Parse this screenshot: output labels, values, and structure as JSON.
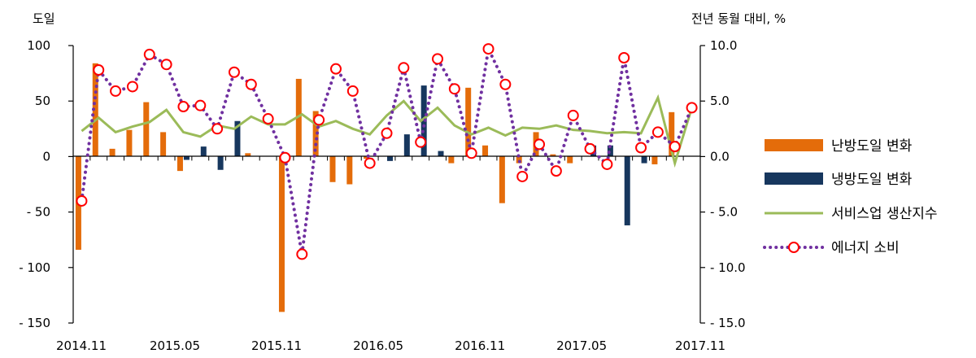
{
  "chart_data": {
    "type": "bar",
    "left_axis_title": "도일",
    "right_axis_title": "전년 동월 대비, %",
    "left_ylim": [
      -150,
      100
    ],
    "left_ticks": [
      "100",
      "50",
      "0",
      "- 50",
      "- 100",
      "- 150"
    ],
    "left_tick_values": [
      100,
      50,
      0,
      -50,
      -100,
      -150
    ],
    "right_ylim": [
      -15.0,
      10.0
    ],
    "right_ticks": [
      "10.0",
      "5.0",
      "0.0",
      "- 5.0",
      "- 10.0",
      "- 15.0"
    ],
    "right_tick_values": [
      10,
      5,
      0,
      -5,
      -10,
      -15
    ],
    "x_tick_labels": [
      {
        "label": "2014.11",
        "index": 0
      },
      {
        "label": "2015.05",
        "index": 6
      },
      {
        "label": "2015.11",
        "index": 12
      },
      {
        "label": "2016.05",
        "index": 18
      },
      {
        "label": "2016.11",
        "index": 24
      },
      {
        "label": "2017.05",
        "index": 30
      },
      {
        "label": "2017.11",
        "index": 36
      }
    ],
    "categories": [
      "2014.11",
      "2014.12",
      "2015.01",
      "2015.02",
      "2015.03",
      "2015.04",
      "2015.05",
      "2015.06",
      "2015.07",
      "2015.08",
      "2015.09",
      "2015.10",
      "2015.11",
      "2015.12",
      "2016.01",
      "2016.02",
      "2016.03",
      "2016.04",
      "2016.05",
      "2016.06",
      "2016.07",
      "2016.08",
      "2016.09",
      "2016.10",
      "2016.11",
      "2016.12",
      "2017.01",
      "2017.02",
      "2017.03",
      "2017.04",
      "2017.05",
      "2017.06",
      "2017.07",
      "2017.08",
      "2017.09",
      "2017.10",
      "2017.11"
    ],
    "series": [
      {
        "name": "난방도일 변화",
        "kind": "bar",
        "axis": "left",
        "color": "#E46C0A",
        "values": [
          -84,
          84,
          7,
          24,
          49,
          22,
          -13,
          0,
          0,
          0,
          3,
          0,
          -140,
          70,
          41,
          -23,
          -25,
          -2,
          0,
          0,
          0,
          0,
          -6,
          62,
          10,
          -42,
          -6,
          22,
          2,
          -6,
          0,
          0,
          0,
          0,
          -7,
          40,
          0
        ]
      },
      {
        "name": "냉방도일 변화",
        "kind": "bar",
        "axis": "left",
        "color": "#17375E",
        "values": [
          0,
          0,
          0,
          0,
          0,
          0,
          -3,
          9,
          -12,
          32,
          0,
          0,
          0,
          0,
          0,
          0,
          0,
          0,
          -4,
          20,
          64,
          5,
          0,
          0,
          0,
          0,
          0,
          0,
          0,
          0,
          10,
          10,
          -62,
          -6,
          0,
          0,
          0
        ]
      },
      {
        "name": "서비스업 생산지수",
        "kind": "line",
        "axis": "right",
        "color": "#9BBB59",
        "values": [
          2.3,
          3.5,
          2.2,
          2.7,
          3.1,
          4.2,
          2.2,
          1.8,
          2.8,
          2.5,
          3.6,
          2.9,
          2.9,
          3.8,
          2.7,
          3.2,
          2.5,
          2.0,
          3.7,
          5.0,
          3.2,
          4.4,
          2.8,
          2.0,
          2.6,
          1.9,
          2.6,
          2.5,
          2.8,
          2.4,
          2.3,
          2.1,
          2.2,
          2.1,
          5.3,
          -0.6,
          4.4
        ]
      },
      {
        "name": "에너지 소비",
        "kind": "line-dotted-markers",
        "axis": "right",
        "color": "#7030A0",
        "marker_color": "#FF0000",
        "values": [
          -4.0,
          7.8,
          5.9,
          6.3,
          9.2,
          8.3,
          4.5,
          4.6,
          2.5,
          7.6,
          6.5,
          3.4,
          -0.1,
          -8.8,
          3.3,
          7.9,
          5.9,
          -0.6,
          2.1,
          8.0,
          1.3,
          8.8,
          6.1,
          0.3,
          9.7,
          6.5,
          -1.8,
          1.1,
          -1.3,
          3.7,
          0.7,
          -0.7,
          8.9,
          0.8,
          2.2,
          0.9,
          4.4
        ]
      }
    ],
    "legend_position": "right",
    "grid": false
  }
}
